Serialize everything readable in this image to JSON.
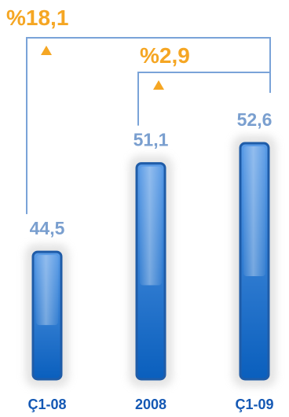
{
  "chart_data": {
    "type": "bar",
    "categories": [
      "Ç1-08",
      "2008",
      "Ç1-09"
    ],
    "values": [
      44.5,
      51.1,
      52.6
    ],
    "value_labels": [
      "44,5",
      "51,1",
      "52,6"
    ],
    "ylim": [
      0,
      52.6
    ],
    "grid": false,
    "annotations": [
      {
        "text": "%18,1",
        "from": "Ç1-08",
        "to": "Ç1-09",
        "direction": "up"
      },
      {
        "text": "%2,9",
        "from": "2008",
        "to": "Ç1-09",
        "direction": "up"
      }
    ]
  },
  "colors": {
    "bar_top": "#5a9be6",
    "bar_bottom": "#0a5fbd",
    "bar_border": "#1f5ca8",
    "value_label": "#7a9fcf",
    "category_label": "#1458b4",
    "bracket": "#7aa3d8",
    "annotation": "#f5a623"
  }
}
